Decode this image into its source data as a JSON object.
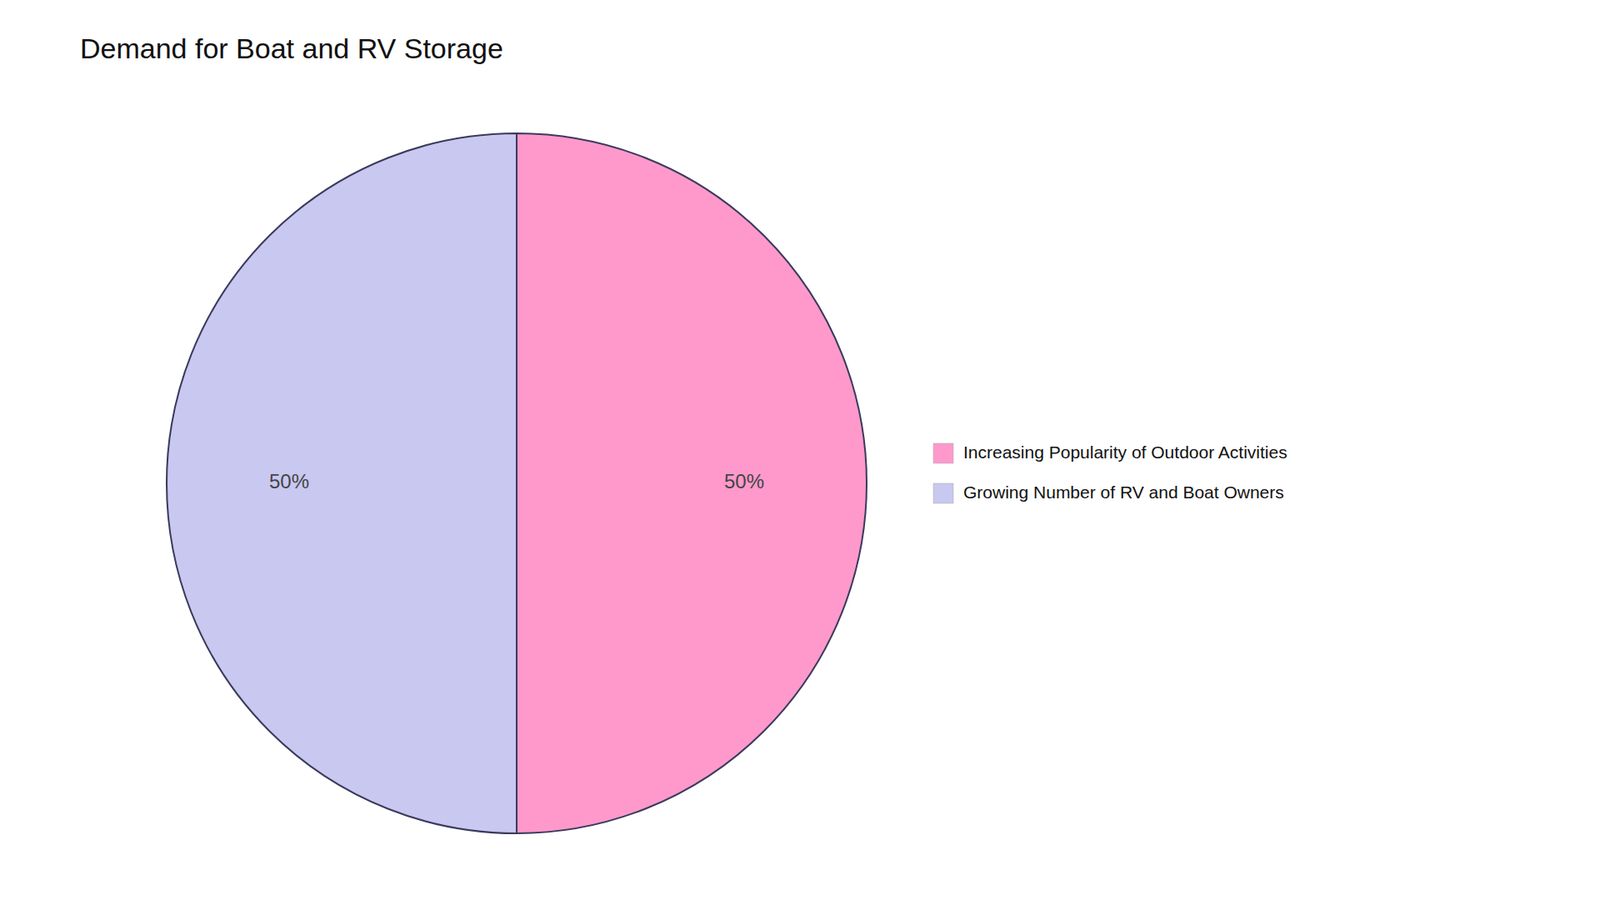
{
  "chart_data": {
    "type": "pie",
    "title": "Demand for Boat and RV Storage",
    "categories": [
      "Increasing Popularity of Outdoor Activities",
      "Growing Number of RV and Boat Owners"
    ],
    "values": [
      50,
      50
    ],
    "value_labels": [
      "50%",
      "50%"
    ],
    "colors": [
      "#FF99CC",
      "#C8C8F0"
    ],
    "data_labels": true,
    "legend": "right"
  }
}
